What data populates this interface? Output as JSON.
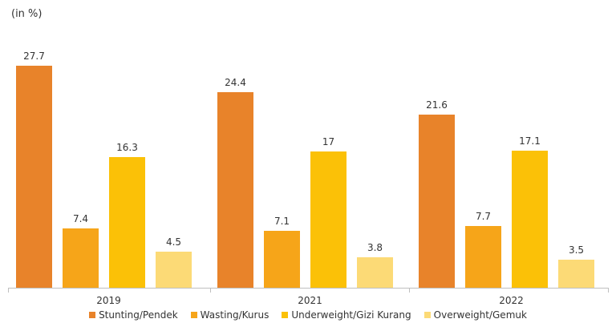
{
  "chart_data": {
    "type": "bar",
    "title": "",
    "unit_label": "(in %)",
    "xlabel": "",
    "ylabel": "",
    "categories": [
      "2019",
      "2021",
      "2022"
    ],
    "ylim": [
      0,
      30
    ],
    "grid": false,
    "legend_position": "bottom",
    "series": [
      {
        "name": "Stunting/Pendek",
        "color": "#E8832A",
        "values": [
          27.7,
          24.4,
          21.6
        ],
        "labels": [
          "27.7",
          "24.4",
          "21.6"
        ]
      },
      {
        "name": "Wasting/Kurus",
        "color": "#F6A519",
        "values": [
          7.4,
          7.1,
          7.7
        ],
        "labels": [
          "7.4",
          "7.1",
          "7.7"
        ]
      },
      {
        "name": "Underweight/Gizi Kurang",
        "color": "#FBC107",
        "values": [
          16.3,
          17,
          17.1
        ],
        "labels": [
          "16.3",
          "17",
          "17.1"
        ]
      },
      {
        "name": "Overweight/Gemuk",
        "color": "#FCDA76",
        "values": [
          4.5,
          3.8,
          3.5
        ],
        "labels": [
          "4.5",
          "3.8",
          "3.5"
        ]
      }
    ]
  }
}
